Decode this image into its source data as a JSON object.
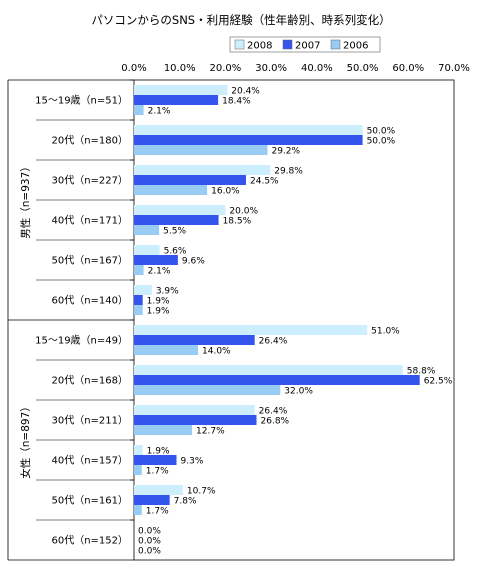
{
  "chart_data": {
    "type": "bar",
    "orientation": "horizontal",
    "title": "パソコンからのSNS・利用経験（性年齢別、時系列変化）",
    "legend_position": "top",
    "xlim": [
      0,
      70
    ],
    "tick_labels": [
      "0.0%",
      "10.0%",
      "20.0%",
      "30.0%",
      "40.0%",
      "50.0%",
      "60.0%",
      "70.0%"
    ],
    "groups": [
      {
        "label": "男性（n=937）",
        "categories": [
          "15～19歳（n=51）",
          "20代（n=180）",
          "30代（n=227）",
          "40代（n=171）",
          "50代（n=167）",
          "60代（n=140）"
        ]
      },
      {
        "label": "女性（n=897）",
        "categories": [
          "15～19歳（n=49）",
          "20代（n=168）",
          "30代（n=211）",
          "40代（n=157）",
          "50代（n=161）",
          "60代（n=152）"
        ]
      }
    ],
    "series": [
      {
        "name": "2008",
        "color": "#cceeff",
        "values": [
          20.4,
          50.0,
          29.8,
          20.0,
          5.6,
          3.9,
          51.0,
          58.8,
          26.4,
          1.9,
          10.7,
          0.0
        ],
        "labels": [
          "20.4%",
          "50.0%",
          "29.8%",
          "20.0%",
          "5.6%",
          "3.9%",
          "51.0%",
          "58.8%",
          "26.4%",
          "1.9%",
          "10.7%",
          "0.0%"
        ]
      },
      {
        "name": "2007",
        "color": "#3355ee",
        "values": [
          18.4,
          50.0,
          24.5,
          18.5,
          9.6,
          1.9,
          26.4,
          62.5,
          26.8,
          9.3,
          7.8,
          0.0
        ],
        "labels": [
          "18.4%",
          "50.0%",
          "24.5%",
          "18.5%",
          "9.6%",
          "1.9%",
          "26.4%",
          "62.5%",
          "26.8%",
          "9.3%",
          "7.8%",
          "0.0%"
        ]
      },
      {
        "name": "2006",
        "color": "#99ccf5",
        "values": [
          2.1,
          29.2,
          16.0,
          5.5,
          2.1,
          1.9,
          14.0,
          32.0,
          12.7,
          1.7,
          1.7,
          0.0
        ],
        "labels": [
          "2.1%",
          "29.2%",
          "16.0%",
          "5.5%",
          "2.1%",
          "1.9%",
          "14.0%",
          "32.0%",
          "12.7%",
          "1.7%",
          "1.7%",
          "0.0%"
        ]
      }
    ]
  }
}
